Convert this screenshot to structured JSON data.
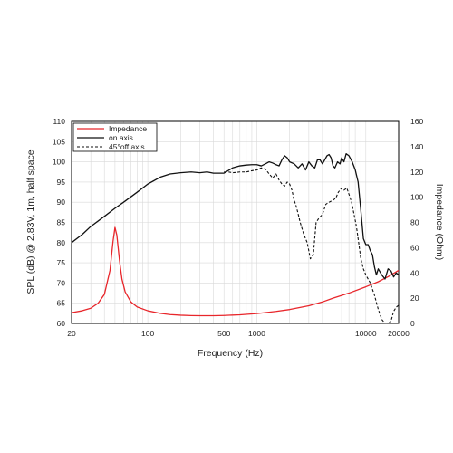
{
  "chart_data": {
    "type": "line",
    "xscale": "log",
    "xlim": [
      20,
      20000
    ],
    "ylim": [
      60,
      110
    ],
    "y2lim": [
      0,
      160
    ],
    "xlabel": "Frequency (Hz)",
    "ylabel": "SPL (dB) @ 2.83V, 1m, half space",
    "y2label": "Impedance (Ohm)",
    "x_ticks": [
      20,
      100,
      500,
      1000,
      10000,
      20000
    ],
    "x_tick_labels": [
      "20",
      "100",
      "500",
      "1000",
      "10000",
      "20000"
    ],
    "y_ticks": [
      60,
      65,
      70,
      75,
      80,
      85,
      90,
      95,
      100,
      105,
      110
    ],
    "y_tick_labels": [
      "60",
      "65",
      "70",
      "75",
      "80",
      "85",
      "90",
      "95",
      "100",
      "105",
      "110"
    ],
    "y2_ticks": [
      0,
      20,
      40,
      60,
      80,
      100,
      120,
      140,
      160
    ],
    "y2_tick_labels": [
      "0",
      "20",
      "40",
      "60",
      "80",
      "100",
      "120",
      "140",
      "160"
    ],
    "grid": true,
    "legend": "top-left",
    "series": [
      {
        "name": "Impedance",
        "axis": "right",
        "color": "#e8262b",
        "style": "solid",
        "x": [
          20,
          25,
          30,
          35,
          40,
          45,
          48,
          50,
          52,
          55,
          58,
          62,
          70,
          80,
          100,
          130,
          160,
          200,
          250,
          300,
          400,
          500,
          700,
          1000,
          1500,
          2000,
          3000,
          4000,
          5000,
          7000,
          10000,
          13000,
          16000,
          20000
        ],
        "values": [
          8.5,
          10,
          12,
          16,
          23,
          42,
          65,
          76,
          70,
          50,
          35,
          25,
          17,
          13,
          10,
          8,
          7,
          6.5,
          6.2,
          6.1,
          6.1,
          6.3,
          6.8,
          7.8,
          9.5,
          11,
          14,
          17,
          20,
          24,
          29,
          33,
          37,
          42
        ]
      },
      {
        "name": "on axis",
        "axis": "left",
        "color": "#111111",
        "style": "solid",
        "x": [
          20,
          25,
          30,
          40,
          50,
          60,
          80,
          100,
          130,
          160,
          200,
          250,
          300,
          350,
          400,
          500,
          600,
          700,
          800,
          900,
          1000,
          1100,
          1200,
          1300,
          1400,
          1500,
          1600,
          1700,
          1800,
          1900,
          2000,
          2200,
          2400,
          2600,
          2800,
          3000,
          3200,
          3400,
          3600,
          3800,
          4000,
          4200,
          4400,
          4600,
          4800,
          5000,
          5200,
          5500,
          5800,
          6000,
          6300,
          6600,
          7000,
          7500,
          8000,
          8500,
          9000,
          9500,
          10000,
          10500,
          11000,
          11500,
          12000,
          12500,
          13000,
          14000,
          15000,
          16000,
          17000,
          18000,
          19000,
          20000
        ],
        "values": [
          80,
          82,
          84,
          86.5,
          88.5,
          90,
          92.5,
          94.5,
          96.2,
          97,
          97.3,
          97.5,
          97.3,
          97.5,
          97.2,
          97.2,
          98.5,
          99,
          99.2,
          99.3,
          99.3,
          99,
          99.5,
          100,
          99.7,
          99.3,
          99,
          100.5,
          101.5,
          101,
          100,
          99.5,
          98.5,
          99.5,
          98,
          100,
          99,
          98.5,
          100.5,
          100.5,
          99.5,
          100.5,
          101.5,
          101.8,
          101,
          99,
          98.5,
          100,
          99.5,
          101,
          100,
          102,
          101.5,
          100,
          98,
          95,
          88,
          81,
          79.5,
          79.5,
          78,
          77,
          74,
          72,
          73.5,
          72,
          71,
          73.5,
          73,
          71.5,
          72.5,
          72
        ]
      },
      {
        "name": "45°off axis",
        "axis": "left",
        "color": "#111111",
        "style": "dashed",
        "x": [
          500,
          550,
          600,
          700,
          800,
          900,
          1000,
          1100,
          1200,
          1300,
          1400,
          1500,
          1600,
          1700,
          1800,
          1900,
          2000,
          2100,
          2200,
          2300,
          2400,
          2500,
          2700,
          2900,
          3100,
          3300,
          3500,
          3700,
          4000,
          4300,
          4600,
          5000,
          5300,
          5600,
          6000,
          6300,
          6700,
          7000,
          7400,
          7800,
          8200,
          8600,
          9000,
          9500,
          10000,
          11000,
          12000,
          13000,
          14000,
          15000,
          16000,
          17000,
          18000,
          19000,
          20000
        ],
        "values": [
          97.5,
          97.5,
          97.3,
          97.5,
          97.5,
          97.8,
          98,
          98.5,
          98.2,
          97,
          96,
          97,
          95.5,
          94.5,
          94,
          95,
          94.5,
          93,
          90.5,
          89,
          87,
          85,
          82,
          80,
          76,
          77,
          85,
          86,
          87,
          89.5,
          90,
          90.5,
          91,
          92.5,
          93.5,
          93,
          93.5,
          92,
          90,
          87,
          84,
          80,
          76,
          73.5,
          72,
          70,
          67,
          63.5,
          61,
          60,
          60,
          60.5,
          63,
          64,
          64.5
        ]
      }
    ]
  }
}
